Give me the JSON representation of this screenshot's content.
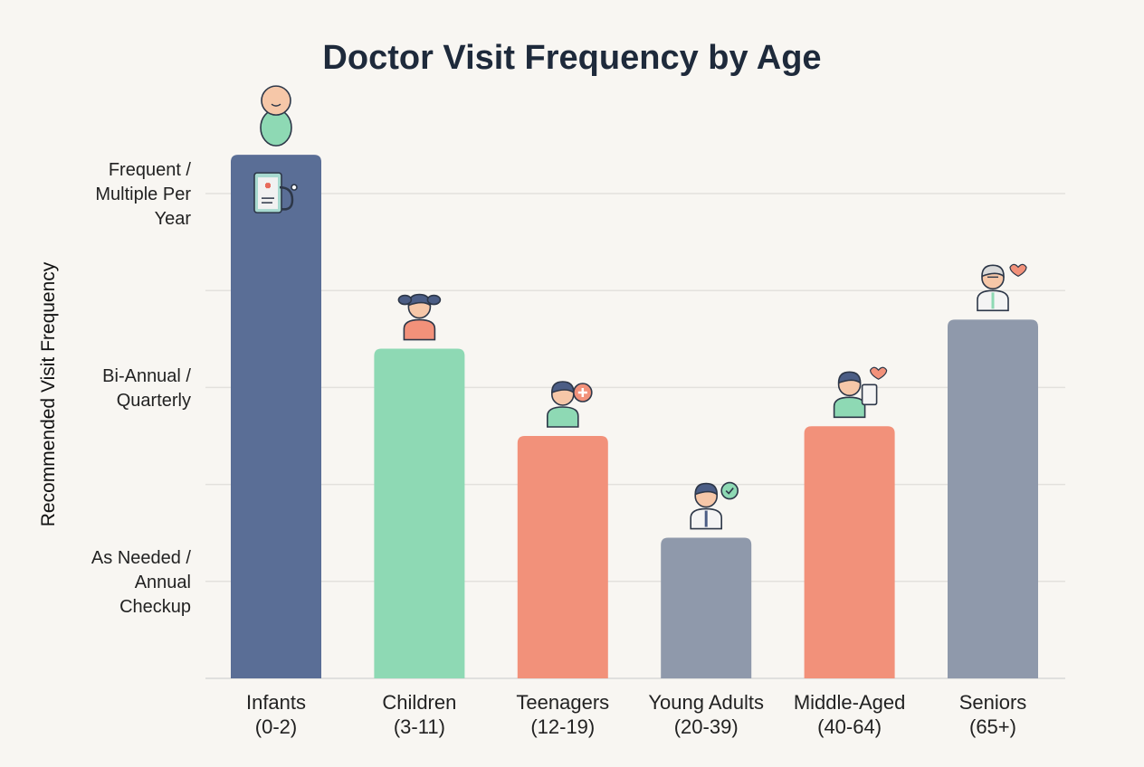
{
  "chart_data": {
    "type": "bar",
    "title": "Doctor Visit Frequency by Age",
    "xlabel": "",
    "ylabel": "Recommended Visit Frequency",
    "ylim": [
      0,
      5.5
    ],
    "grid": true,
    "y_tick_values": [
      0,
      1,
      2,
      3,
      4,
      5
    ],
    "y_tick_labels": [
      {
        "value": 1,
        "lines": [
          "As Needed /",
          "Annual",
          "Checkup"
        ]
      },
      {
        "value": 3,
        "lines": [
          "Bi-Annual /",
          "Quarterly"
        ]
      },
      {
        "value": 5,
        "lines": [
          "Frequent /",
          "Multiple Per",
          "Year"
        ]
      }
    ],
    "categories": [
      {
        "lines": [
          "Infants",
          "(0-2)"
        ]
      },
      {
        "lines": [
          "Children",
          "(3-11)"
        ]
      },
      {
        "lines": [
          "Teenagers",
          "(12-19)"
        ]
      },
      {
        "lines": [
          "Young Adults",
          "(20-39)"
        ]
      },
      {
        "lines": [
          "Middle-Aged",
          "(40-64)"
        ]
      },
      {
        "lines": [
          "Seniors",
          "(65+)"
        ]
      }
    ],
    "values": [
      5.4,
      3.4,
      2.5,
      1.45,
      2.6,
      3.7
    ],
    "colors": [
      "#5a6e96",
      "#8ed9b4",
      "#f2917a",
      "#8f99ab",
      "#f2917a",
      "#8f99ab"
    ],
    "icons": [
      "baby-icon",
      "girl-icon",
      "teen-doctor-icon",
      "young-adult-doctor-icon",
      "woman-heart-clipboard-icon",
      "senior-doctor-icon"
    ],
    "extra_icon": "clipboard-stethoscope-icon"
  }
}
